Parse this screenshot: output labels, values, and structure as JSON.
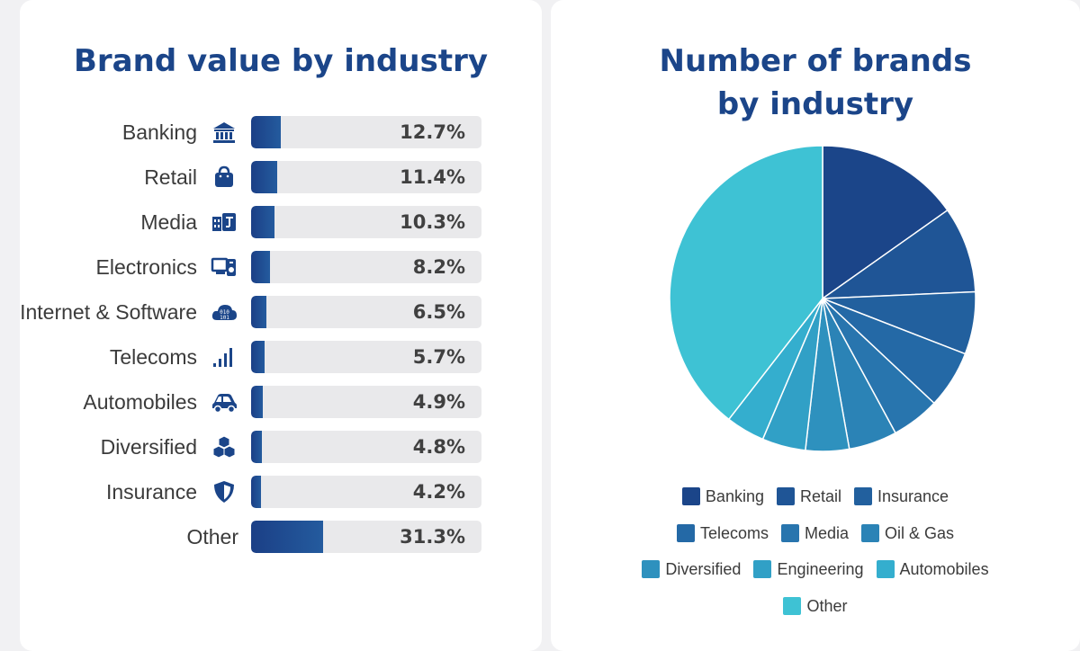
{
  "chart_data": [
    {
      "type": "bar",
      "title": "Brand value by industry",
      "categories": [
        "Banking",
        "Retail",
        "Media",
        "Electronics",
        "Internet & Software",
        "Telecoms",
        "Automobiles",
        "Diversified",
        "Insurance",
        "Other"
      ],
      "values": [
        12.7,
        11.4,
        10.3,
        8.2,
        6.5,
        5.7,
        4.9,
        4.8,
        4.2,
        31.3
      ],
      "value_labels": [
        "12.7%",
        "11.4%",
        "10.3%",
        "8.2%",
        "6.5%",
        "5.7%",
        "4.9%",
        "4.8%",
        "4.2%",
        "31.3%"
      ],
      "icons": [
        "bank-icon",
        "shopping-bag-icon",
        "media-icon",
        "devices-icon",
        "cloud-binary-icon",
        "signal-bars-icon",
        "car-icon",
        "cubes-icon",
        "shield-icon",
        ""
      ],
      "xlim": [
        0,
        100
      ],
      "color": "#1b4589"
    },
    {
      "type": "pie",
      "title": "Number of brands by industry",
      "categories": [
        "Banking",
        "Retail",
        "Insurance",
        "Telecoms",
        "Media",
        "Oil & Gas",
        "Diversified",
        "Engineering",
        "Automobiles",
        "Other"
      ],
      "values": [
        15.2,
        9.1,
        6.6,
        6.1,
        5.1,
        5.1,
        4.6,
        4.6,
        4.1,
        39.5
      ],
      "colors": [
        "#1b4589",
        "#1f5596",
        "#22609e",
        "#2469a6",
        "#2875ae",
        "#2b83b6",
        "#2e91be",
        "#31a0c6",
        "#34aece",
        "#3ec2d4"
      ],
      "legend_position": "bottom"
    }
  ]
}
